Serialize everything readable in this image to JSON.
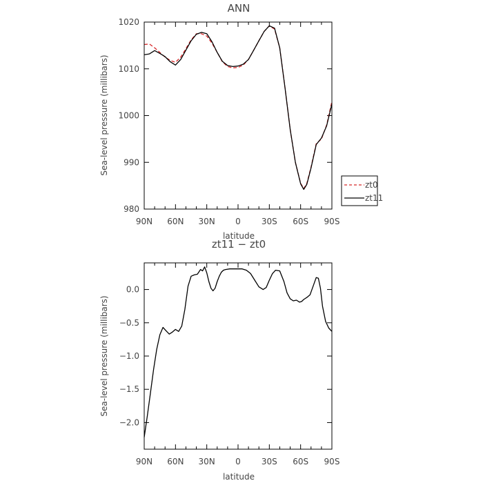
{
  "chart_data": [
    {
      "type": "line",
      "title": "ANN",
      "xlabel": "latitude",
      "ylabel": "Sea-level pressure (millibars)",
      "xlim": [
        90,
        -90
      ],
      "ylim": [
        980,
        1020
      ],
      "x_ticks": [
        90,
        60,
        30,
        0,
        -30,
        -60,
        -90
      ],
      "x_tick_labels": [
        "90N",
        "60N",
        "30N",
        "0",
        "30S",
        "60S",
        "90S"
      ],
      "y_ticks": [
        980,
        990,
        1000,
        1010,
        1020
      ],
      "y_tick_labels": [
        "980",
        "990",
        "1000",
        "1010",
        "1020"
      ],
      "legend_position": "right",
      "series": [
        {
          "name": "zt0",
          "color": "#d62728",
          "dash": "dashed",
          "x": [
            90,
            85,
            80,
            75,
            70,
            65,
            60,
            55,
            50,
            45,
            40,
            35,
            30,
            25,
            20,
            15,
            10,
            5,
            0,
            -5,
            -10,
            -15,
            -20,
            -25,
            -30,
            -35,
            -40,
            -45,
            -50,
            -55,
            -60,
            -63,
            -66,
            -70,
            -75,
            -80,
            -85,
            -90
          ],
          "values": [
            1015.2,
            1015.3,
            1014.5,
            1013.5,
            1012.5,
            1011.8,
            1011.4,
            1012.5,
            1014.3,
            1016.2,
            1017.5,
            1017.5,
            1017.0,
            1015.5,
            1013.5,
            1011.5,
            1010.5,
            1010.2,
            1010.3,
            1010.8,
            1012.0,
            1014.0,
            1016.0,
            1018.0,
            1019.2,
            1018.5,
            1014.5,
            1006.0,
            997.0,
            990.0,
            985.5,
            984.4,
            985.5,
            989.0,
            994.0,
            995.0,
            998.0,
            1003.0
          ]
        },
        {
          "name": "zt11",
          "color": "#000000",
          "dash": "solid",
          "x": [
            90,
            85,
            80,
            75,
            70,
            65,
            60,
            55,
            50,
            45,
            40,
            35,
            30,
            25,
            20,
            15,
            10,
            5,
            0,
            -5,
            -10,
            -15,
            -20,
            -25,
            -30,
            -35,
            -40,
            -45,
            -50,
            -55,
            -60,
            -63,
            -66,
            -70,
            -75,
            -80,
            -85,
            -90
          ],
          "values": [
            1013.0,
            1013.2,
            1013.9,
            1013.3,
            1012.6,
            1011.5,
            1010.8,
            1012.0,
            1014.0,
            1016.0,
            1017.4,
            1017.8,
            1017.5,
            1015.8,
            1013.5,
            1011.6,
            1010.7,
            1010.5,
            1010.6,
            1011.0,
            1012.0,
            1014.0,
            1016.0,
            1018.0,
            1019.2,
            1018.7,
            1014.5,
            1006.0,
            997.0,
            990.0,
            985.4,
            984.2,
            985.3,
            988.8,
            993.8,
            995.2,
            997.8,
            1002.5
          ]
        }
      ]
    },
    {
      "type": "line",
      "title": "zt11 − zt0",
      "xlabel": "latitude",
      "ylabel": "Sea-level pressure (millibars)",
      "xlim": [
        90,
        -90
      ],
      "ylim": [
        -2.4,
        0.4
      ],
      "x_ticks": [
        90,
        60,
        30,
        0,
        -30,
        -60,
        -90
      ],
      "x_tick_labels": [
        "90N",
        "60N",
        "30N",
        "0",
        "30S",
        "60S",
        "90S"
      ],
      "y_ticks": [
        -2.0,
        -1.5,
        -1.0,
        -0.5,
        0.0
      ],
      "y_tick_labels": [
        "−2.0",
        "−1.5",
        "−1.0",
        "−0.5",
        "0.0"
      ],
      "series": [
        {
          "name": "zt11 − zt0",
          "color": "#000000",
          "dash": "solid",
          "x": [
            90,
            87,
            84,
            81,
            78,
            75,
            72,
            69,
            66,
            63,
            60,
            57,
            54,
            51,
            48,
            45,
            42,
            39,
            36,
            34,
            32,
            30,
            28,
            26,
            24,
            22,
            20,
            18,
            16,
            14,
            12,
            8,
            4,
            0,
            -4,
            -8,
            -12,
            -16,
            -20,
            -24,
            -27,
            -30,
            -33,
            -36,
            -40,
            -44,
            -47,
            -50,
            -53,
            -56,
            -59,
            -61,
            -63,
            -66,
            -69,
            -72,
            -75,
            -77,
            -79,
            -81,
            -84,
            -87,
            -90
          ],
          "values": [
            -2.22,
            -1.9,
            -1.55,
            -1.2,
            -0.9,
            -0.68,
            -0.57,
            -0.62,
            -0.67,
            -0.64,
            -0.6,
            -0.63,
            -0.55,
            -0.3,
            0.05,
            0.2,
            0.22,
            0.23,
            0.3,
            0.28,
            0.34,
            0.25,
            0.12,
            0.02,
            -0.02,
            0.02,
            0.12,
            0.2,
            0.26,
            0.29,
            0.3,
            0.31,
            0.31,
            0.31,
            0.31,
            0.29,
            0.24,
            0.14,
            0.04,
            0.0,
            0.03,
            0.14,
            0.24,
            0.29,
            0.28,
            0.12,
            -0.05,
            -0.14,
            -0.17,
            -0.16,
            -0.19,
            -0.18,
            -0.15,
            -0.12,
            -0.08,
            0.05,
            0.18,
            0.17,
            0.02,
            -0.25,
            -0.48,
            -0.58,
            -0.63
          ]
        }
      ]
    }
  ]
}
